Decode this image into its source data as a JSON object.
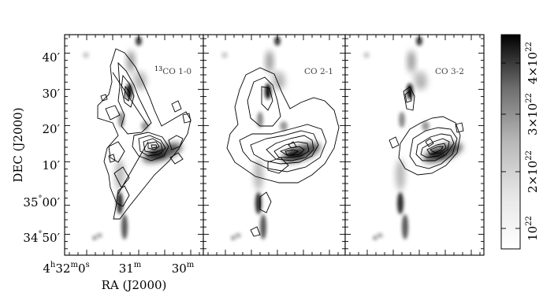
{
  "figure": {
    "panels": [
      {
        "label_iso": "13",
        "label_main": "CO 1-0"
      },
      {
        "label_iso": "",
        "label_main": "CO 2-1"
      },
      {
        "label_iso": "",
        "label_main": "CO 3-2"
      }
    ],
    "y_axis": {
      "title": "DEC (J2000)",
      "ticks": [
        {
          "deg": "",
          "min": "40",
          "prime": "′"
        },
        {
          "deg": "",
          "min": "30",
          "prime": "′"
        },
        {
          "deg": "",
          "min": "20",
          "prime": "′"
        },
        {
          "deg": "",
          "min": "10",
          "prime": "′"
        },
        {
          "deg": "35",
          "min": "00",
          "prime": "′"
        },
        {
          "deg": "34",
          "min": "50",
          "prime": "′"
        }
      ]
    },
    "x_axis": {
      "title": "RA (J2000)",
      "ticks": [
        {
          "h": "4",
          "hsup": "h",
          "m": "32",
          "msup": "m",
          "s": "0",
          "ssup": "s"
        },
        {
          "h": "",
          "hsup": "",
          "m": "31",
          "msup": "m",
          "s": "",
          "ssup": ""
        },
        {
          "h": "",
          "hsup": "",
          "m": "30",
          "msup": "m",
          "s": "",
          "ssup": ""
        }
      ]
    },
    "colorbar": {
      "ticks": [
        {
          "mant": "4×10",
          "exp": "22"
        },
        {
          "mant": "3×10",
          "exp": "22"
        },
        {
          "mant": "2×10",
          "exp": "22"
        },
        {
          "mant": "10",
          "exp": "22"
        }
      ],
      "colors": {
        "low": "#ffffff",
        "high": "#000000"
      }
    }
  }
}
